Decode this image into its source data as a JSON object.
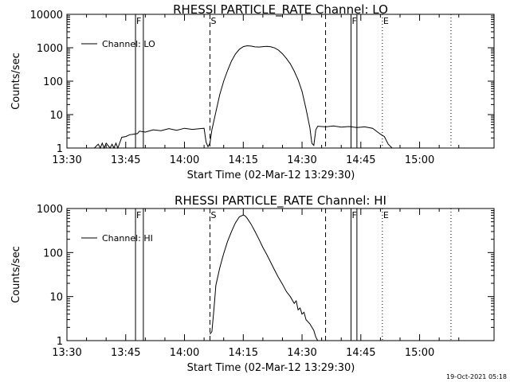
{
  "chart_data": [
    {
      "type": "line",
      "title": "RHESSI PARTICLE_RATE Channel: LO",
      "xlabel": "Start Time (02-Mar-12 13:29:30)",
      "ylabel": "Counts/sec",
      "yscale": "log",
      "ylim": [
        1,
        10000
      ],
      "xlim": [
        "13:30",
        "15:19"
      ],
      "x_ticks": [
        "13:30",
        "13:45",
        "14:00",
        "14:15",
        "14:30",
        "14:45",
        "15:00"
      ],
      "y_ticks": [
        "1",
        "10",
        "100",
        "1000",
        "10000"
      ],
      "legend": "top-left",
      "series": [
        {
          "name": "Channel: LO",
          "points": [
            [
              "13:37",
              1
            ],
            [
              "13:38",
              1.3
            ],
            [
              "13:38:30",
              1
            ],
            [
              "13:39",
              1.4
            ],
            [
              "13:39:30",
              1
            ],
            [
              "13:40",
              1.4
            ],
            [
              "13:41",
              1
            ],
            [
              "13:41:30",
              1.3
            ],
            [
              "13:42",
              1
            ],
            [
              "13:42:30",
              1.4
            ],
            [
              "13:43",
              1
            ],
            [
              "13:44",
              2.1
            ],
            [
              "13:45",
              2.2
            ],
            [
              "13:46",
              2.5
            ],
            [
              "13:47",
              2.6
            ],
            [
              "13:48",
              2.7
            ],
            [
              "13:48:30",
              3.2
            ],
            [
              "13:50",
              3.0
            ],
            [
              "13:52",
              3.5
            ],
            [
              "13:54",
              3.3
            ],
            [
              "13:56",
              3.8
            ],
            [
              "13:58",
              3.4
            ],
            [
              "14:00",
              3.9
            ],
            [
              "14:02",
              3.6
            ],
            [
              "14:04",
              3.8
            ],
            [
              "14:05",
              3.9
            ],
            [
              "14:05:30",
              1.5
            ],
            [
              "14:06",
              1.1
            ],
            [
              "14:06:30",
              1.4
            ],
            [
              "14:07",
              3.5
            ],
            [
              "14:08",
              12
            ],
            [
              "14:09",
              40
            ],
            [
              "14:10",
              100
            ],
            [
              "14:11",
              210
            ],
            [
              "14:12",
              400
            ],
            [
              "14:13",
              650
            ],
            [
              "14:14",
              900
            ],
            [
              "14:15",
              1080
            ],
            [
              "14:16",
              1150
            ],
            [
              "14:17",
              1120
            ],
            [
              "14:18",
              1060
            ],
            [
              "14:19",
              1050
            ],
            [
              "14:20",
              1080
            ],
            [
              "14:21",
              1100
            ],
            [
              "14:22",
              1070
            ],
            [
              "14:23",
              990
            ],
            [
              "14:24",
              850
            ],
            [
              "14:25",
              660
            ],
            [
              "14:26",
              480
            ],
            [
              "14:27",
              330
            ],
            [
              "14:28",
              200
            ],
            [
              "14:29",
              110
            ],
            [
              "14:30",
              50
            ],
            [
              "14:31",
              15
            ],
            [
              "14:32",
              4
            ],
            [
              "14:32:30",
              1.4
            ],
            [
              "14:33",
              1.2
            ],
            [
              "14:33:30",
              3.5
            ],
            [
              "14:34",
              4.5
            ],
            [
              "14:36",
              4.3
            ],
            [
              "14:38",
              4.6
            ],
            [
              "14:40",
              4.2
            ],
            [
              "14:42",
              4.4
            ],
            [
              "14:44",
              4.1
            ],
            [
              "14:46",
              4.3
            ],
            [
              "14:48",
              3.9
            ],
            [
              "14:50",
              2.6
            ],
            [
              "14:51",
              2.2
            ],
            [
              "14:52",
              1.3
            ],
            [
              "14:53",
              1.0
            ]
          ]
        }
      ],
      "vlines": [
        {
          "label": "F",
          "time": "13:47:30",
          "style": "solid"
        },
        {
          "label": "",
          "time": "13:49:30",
          "style": "solid"
        },
        {
          "label": "S",
          "time": "14:06:30",
          "style": "dashed"
        },
        {
          "label": "",
          "time": "14:36",
          "style": "dashed"
        },
        {
          "label": "F",
          "time": "14:42:30",
          "style": "solid"
        },
        {
          "label": "",
          "time": "14:44",
          "style": "solid"
        },
        {
          "label": "E",
          "time": "14:50:30",
          "style": "dotted"
        },
        {
          "label": "",
          "time": "15:08",
          "style": "dotted"
        }
      ]
    },
    {
      "type": "line",
      "title": "RHESSI PARTICLE_RATE Channel: HI",
      "xlabel": "Start Time (02-Mar-12 13:29:30)",
      "ylabel": "Counts/sec",
      "yscale": "log",
      "ylim": [
        1,
        1000
      ],
      "xlim": [
        "13:30",
        "15:19"
      ],
      "x_ticks": [
        "13:30",
        "13:45",
        "14:00",
        "14:15",
        "14:30",
        "14:45",
        "15:00"
      ],
      "y_ticks": [
        "1",
        "10",
        "100",
        "1000"
      ],
      "legend": "top-left",
      "series": [
        {
          "name": "Channel: HI",
          "points": [
            [
              "14:06:30",
              1.4
            ],
            [
              "14:07",
              1.6
            ],
            [
              "14:07:30",
              5
            ],
            [
              "14:08",
              18
            ],
            [
              "14:09",
              45
            ],
            [
              "14:10",
              95
            ],
            [
              "14:11",
              180
            ],
            [
              "14:12",
              300
            ],
            [
              "14:13",
              470
            ],
            [
              "14:14",
              650
            ],
            [
              "14:15",
              710
            ],
            [
              "14:15:30",
              680
            ],
            [
              "14:16",
              600
            ],
            [
              "14:17",
              440
            ],
            [
              "14:18",
              300
            ],
            [
              "14:19",
              200
            ],
            [
              "14:20",
              130
            ],
            [
              "14:21",
              90
            ],
            [
              "14:22",
              60
            ],
            [
              "14:23",
              40
            ],
            [
              "14:24",
              27
            ],
            [
              "14:25",
              19
            ],
            [
              "14:26",
              13
            ],
            [
              "14:27",
              10
            ],
            [
              "14:28",
              7
            ],
            [
              "14:28:30",
              8
            ],
            [
              "14:29",
              5
            ],
            [
              "14:29:30",
              5.5
            ],
            [
              "14:30",
              4
            ],
            [
              "14:30:30",
              4.4
            ],
            [
              "14:31",
              3.0
            ],
            [
              "14:32",
              2.4
            ],
            [
              "14:33",
              1.7
            ],
            [
              "14:33:30",
              1.2
            ],
            [
              "14:34",
              1.0
            ]
          ]
        }
      ],
      "vlines": [
        {
          "label": "F",
          "time": "13:47:30",
          "style": "solid"
        },
        {
          "label": "",
          "time": "13:49:30",
          "style": "solid"
        },
        {
          "label": "S",
          "time": "14:06:30",
          "style": "dashed"
        },
        {
          "label": "",
          "time": "14:36",
          "style": "dashed"
        },
        {
          "label": "F",
          "time": "14:42:30",
          "style": "solid"
        },
        {
          "label": "",
          "time": "14:44",
          "style": "solid"
        },
        {
          "label": "E",
          "time": "14:50:30",
          "style": "dotted"
        },
        {
          "label": "",
          "time": "15:08",
          "style": "dotted"
        }
      ]
    }
  ],
  "footer": {
    "timestamp": "19-Oct-2021 05:18"
  }
}
